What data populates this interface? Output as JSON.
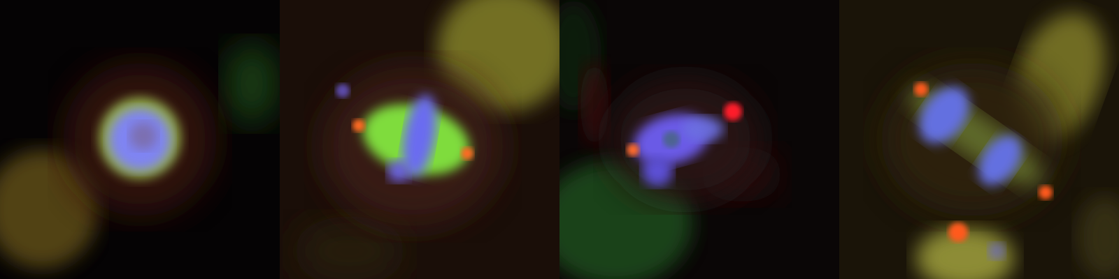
{
  "figure": {
    "panel_count": 4,
    "channels": {
      "dna": "#6a6cff",
      "spindle": "#7fe34a",
      "centrosome": "#ff4a1c",
      "background_cell": "#8a8a22"
    },
    "panels": [
      {
        "stage": "prophase"
      },
      {
        "stage": "prometaphase"
      },
      {
        "stage": "prometaphase-monopolar"
      },
      {
        "stage": "anaphase"
      }
    ]
  }
}
